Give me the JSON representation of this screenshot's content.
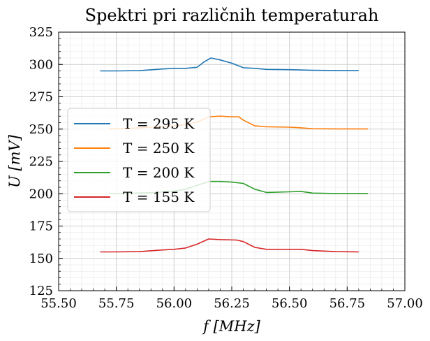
{
  "chart_data": {
    "type": "line",
    "title": "Spektri pri različnih temperaturah",
    "xlabel": "f [MHz]",
    "ylabel": "U [mV]",
    "xlim": [
      55.5,
      57.0
    ],
    "ylim": [
      125,
      325
    ],
    "x_ticks": [
      "55.50",
      "55.75",
      "56.00",
      "56.25",
      "56.50",
      "56.75",
      "57.00"
    ],
    "y_ticks": [
      "125",
      "150",
      "175",
      "200",
      "225",
      "250",
      "275",
      "300",
      "325"
    ],
    "grid": true,
    "minor_grid": true,
    "legend_position": "center-left",
    "series": [
      {
        "name": "T = 295 K",
        "color": "#1f77b4",
        "x": [
          55.68,
          55.75,
          55.85,
          55.95,
          56.0,
          56.05,
          56.1,
          56.13,
          56.16,
          56.2,
          56.25,
          56.3,
          56.35,
          56.4,
          56.5,
          56.6,
          56.7,
          56.8
        ],
        "y": [
          295,
          295,
          295.2,
          296.5,
          297,
          297,
          297.8,
          302,
          305,
          303.5,
          301,
          297.5,
          297,
          296.2,
          296,
          295.5,
          295.3,
          295.2
        ]
      },
      {
        "name": "T = 250 K",
        "color": "#ff7f0e",
        "x": [
          55.72,
          55.8,
          55.9,
          56.0,
          56.05,
          56.1,
          56.15,
          56.2,
          56.25,
          56.28,
          56.3,
          56.35,
          56.4,
          56.5,
          56.55,
          56.6,
          56.7,
          56.84
        ],
        "y": [
          250.2,
          250.5,
          251.5,
          252.5,
          253.5,
          255.5,
          259.5,
          260,
          259.5,
          259.5,
          257,
          252.5,
          251.8,
          251.5,
          251,
          250.3,
          250.2,
          250.2
        ]
      },
      {
        "name": "T = 200 K",
        "color": "#2ca02c",
        "x": [
          55.72,
          55.8,
          55.9,
          56.0,
          56.05,
          56.1,
          56.15,
          56.2,
          56.25,
          56.3,
          56.35,
          56.4,
          56.5,
          56.55,
          56.6,
          56.7,
          56.84
        ],
        "y": [
          200.2,
          200.3,
          200.8,
          202,
          203.5,
          206.5,
          209.5,
          209.5,
          209,
          208,
          203.5,
          201,
          201.5,
          201.8,
          200.5,
          200.2,
          200.2
        ]
      },
      {
        "name": "T = 155 K",
        "color": "#d62728",
        "x": [
          55.68,
          55.75,
          55.85,
          55.95,
          56.0,
          56.05,
          56.1,
          56.15,
          56.2,
          56.27,
          56.3,
          56.35,
          56.4,
          56.5,
          56.55,
          56.6,
          56.7,
          56.8
        ],
        "y": [
          155,
          155,
          155.2,
          156.5,
          157,
          158,
          161,
          165,
          164.5,
          164.2,
          163,
          158.5,
          157,
          157,
          157,
          156,
          155.2,
          155
        ]
      }
    ]
  }
}
